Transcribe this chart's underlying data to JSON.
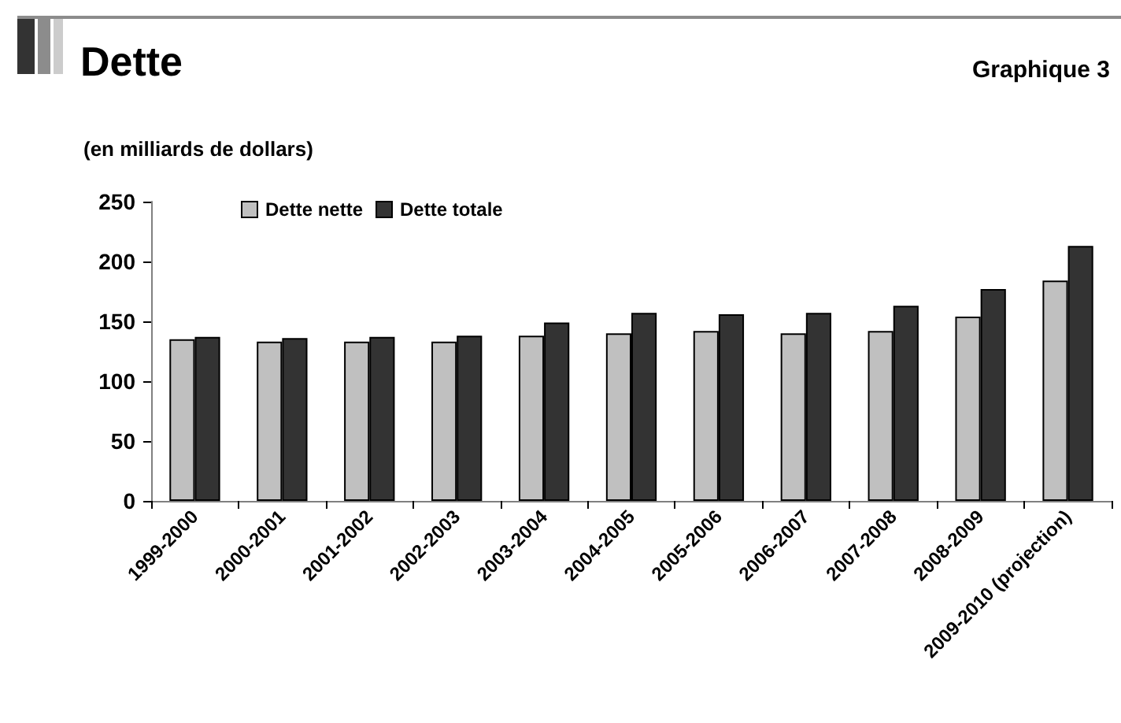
{
  "chart_data": {
    "type": "bar",
    "title": "Dette",
    "ylabel": "(en milliards de dollars)",
    "annotations": [
      "Graphique 3"
    ],
    "categories": [
      "1999-2000",
      "2000-2001",
      "2001-2002",
      "2002-2003",
      "2003-2004",
      "2004-2005",
      "2005-2006",
      "2006-2007",
      "2007-2008",
      "2008-2009",
      "2009-2010 (projection)"
    ],
    "series": [
      {
        "name": "Dette nette",
        "color": "#c0c0c0",
        "values": [
          135,
          133,
          133,
          133,
          138,
          140,
          142,
          140,
          142,
          154,
          184
        ]
      },
      {
        "name": "Dette totale",
        "color": "#333333",
        "values": [
          137,
          136,
          137,
          138,
          149,
          157,
          156,
          157,
          163,
          177,
          213
        ]
      }
    ],
    "ylim": [
      0,
      250
    ],
    "yticks": [
      0,
      50,
      100,
      150,
      200,
      250
    ],
    "legend": "top left"
  }
}
